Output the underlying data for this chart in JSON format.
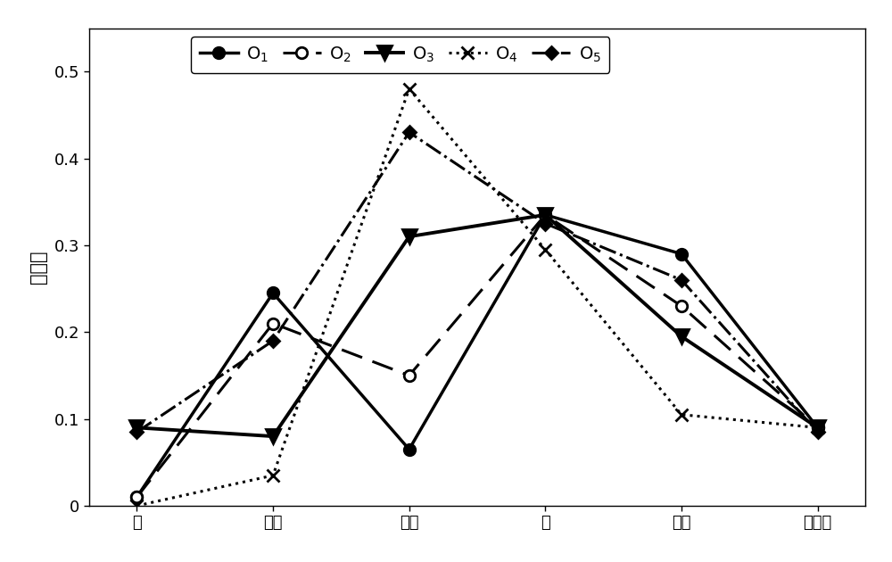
{
  "x_labels": [
    "差",
    "勉强",
    "一般",
    "好",
    "极好",
    "不确定"
  ],
  "series": [
    {
      "name_display": "O",
      "name_sub": "1",
      "key": "O1",
      "values": [
        0.01,
        0.245,
        0.065,
        0.335,
        0.29,
        0.09
      ]
    },
    {
      "name_display": "O",
      "name_sub": "2",
      "key": "O2",
      "values": [
        0.01,
        0.21,
        0.15,
        0.335,
        0.23,
        0.09
      ]
    },
    {
      "name_display": "O",
      "name_sub": "3",
      "key": "O3",
      "values": [
        0.09,
        0.08,
        0.31,
        0.335,
        0.195,
        0.09
      ]
    },
    {
      "name_display": "O",
      "name_sub": "4",
      "key": "O4",
      "values": [
        0.0,
        0.035,
        0.48,
        0.295,
        0.105,
        0.09
      ]
    },
    {
      "name_display": "O",
      "name_sub": "5",
      "key": "O5",
      "values": [
        0.085,
        0.19,
        0.43,
        0.325,
        0.26,
        0.085
      ]
    }
  ],
  "ylabel": "置信度",
  "ylim": [
    0,
    0.55
  ],
  "yticks": [
    0.0,
    0.1,
    0.2,
    0.3,
    0.4,
    0.5
  ],
  "background_color": "#ffffff",
  "legend_fontsize": 14,
  "axis_fontsize": 15,
  "tick_fontsize": 13
}
